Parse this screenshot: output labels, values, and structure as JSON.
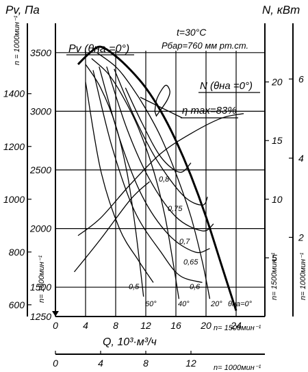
{
  "chart_data": {
    "type": "line",
    "title": "",
    "conditions": {
      "temperature": "t=30°C",
      "pressure": "Pбар=760 мм рт.ст."
    },
    "left_axes": {
      "pv_title": "Pv, Па",
      "outer_axis_title": "n = 1000мин⁻¹",
      "pv_1500_ticks": [
        "1250",
        "1500",
        "2000",
        "2500",
        "3000",
        "3500"
      ],
      "pv_1000_ticks": [
        "600",
        "800",
        "1000",
        "1200",
        "1400"
      ],
      "n_1500_label": "n= 1500мин⁻¹"
    },
    "right_axes": {
      "n_title": "N, кВт",
      "n_1500_ticks": [
        "5",
        "10",
        "15",
        "20"
      ],
      "n_1000_ticks": [
        "2",
        "4",
        "6"
      ],
      "n_1500_label": "n= 1500мин⁻¹",
      "n_1000_label": "n= 1000мин⁻¹"
    },
    "x_axis": {
      "title": "Q, 10³·м³/ч",
      "ticks_1500": [
        "0",
        "4",
        "8",
        "12",
        "16",
        "20",
        "24"
      ],
      "label_1500": "n= 1500мин⁻¹",
      "ticks_1000": [
        "0",
        "4",
        "8",
        "12"
      ],
      "label_1000": "n= 1000мин⁻¹"
    },
    "axis_ranges": {
      "q_1500": [
        0,
        24
      ],
      "pv_1500": [
        1250,
        3750
      ],
      "n_1500": [
        0,
        25
      ]
    },
    "grid": true,
    "series": [
      {
        "name": "Pv (θна =0°)",
        "kind": "pressure-angle",
        "angle": "0°",
        "points": [
          [
            3,
            3400
          ],
          [
            4.6,
            3500
          ],
          [
            6,
            3550
          ],
          [
            8,
            3470
          ],
          [
            10,
            3350
          ],
          [
            12,
            3200
          ],
          [
            14,
            3000
          ],
          [
            16,
            2750
          ],
          [
            18,
            2450
          ],
          [
            20,
            2100
          ],
          [
            22,
            1700
          ],
          [
            24,
            1300
          ]
        ]
      },
      {
        "kind": "pressure-angle",
        "angle": "20°",
        "points": [
          [
            5.5,
            3500
          ],
          [
            8,
            3380
          ],
          [
            10,
            3220
          ],
          [
            12,
            3020
          ],
          [
            14,
            2780
          ],
          [
            16,
            2470
          ],
          [
            18,
            2100
          ],
          [
            19.5,
            1720
          ],
          [
            20.5,
            1400
          ]
        ]
      },
      {
        "kind": "pressure-angle",
        "angle": "40°",
        "points": [
          [
            4.8,
            3450
          ],
          [
            7,
            3320
          ],
          [
            9,
            3120
          ],
          [
            11,
            2860
          ],
          [
            13,
            2500
          ],
          [
            14.5,
            2120
          ],
          [
            15.6,
            1720
          ],
          [
            16.4,
            1400
          ]
        ]
      },
      {
        "kind": "pressure-angle",
        "angle": "60°",
        "points": [
          [
            4,
            3400
          ],
          [
            6,
            3200
          ],
          [
            8,
            2880
          ],
          [
            9.5,
            2480
          ],
          [
            10.5,
            2060
          ],
          [
            11.2,
            1700
          ],
          [
            11.7,
            1420
          ]
        ]
      },
      {
        "name": "N (θна =0°)",
        "kind": "power",
        "points": [
          [
            3,
            6.9
          ],
          [
            6,
            8.4
          ],
          [
            10,
            11.3
          ],
          [
            14,
            13.9
          ],
          [
            18,
            15.6
          ],
          [
            22,
            16.9
          ],
          [
            25,
            17.3
          ]
        ]
      },
      {
        "kind": "power",
        "points": [
          [
            2.5,
            3.8
          ],
          [
            6,
            6.6
          ],
          [
            10,
            10.0
          ],
          [
            12.5,
            11.5
          ]
        ]
      },
      {
        "kind": "efficiency",
        "value": "0,5",
        "points": [
          [
            4,
            3250
          ],
          [
            6,
            2500
          ],
          [
            8.5,
            2000
          ],
          [
            11,
            1730
          ],
          [
            13,
            1540
          ]
        ]
      },
      {
        "kind": "efficiency",
        "value": "0,6",
        "points": [
          [
            5,
            3350
          ],
          [
            7.5,
            2700
          ],
          [
            10.5,
            2150
          ],
          [
            14,
            1800
          ],
          [
            16.5,
            1600
          ],
          [
            19.5,
            1540
          ]
        ]
      },
      {
        "kind": "efficiency",
        "value": "0,65",
        "points": [
          [
            5.8,
            3380
          ],
          [
            8.5,
            2770
          ],
          [
            11.5,
            2280
          ],
          [
            15,
            1950
          ],
          [
            18.5,
            1800
          ],
          [
            20.5,
            1830
          ]
        ]
      },
      {
        "kind": "efficiency",
        "value": "0,7",
        "points": [
          [
            6.8,
            3380
          ],
          [
            9.5,
            2850
          ],
          [
            12.5,
            2420
          ],
          [
            16,
            2100
          ],
          [
            19.5,
            1980
          ],
          [
            21,
            2040
          ]
        ]
      },
      {
        "kind": "efficiency",
        "value": "0,75",
        "points": [
          [
            7.8,
            3360
          ],
          [
            10.5,
            2950
          ],
          [
            13.5,
            2580
          ],
          [
            17,
            2280
          ],
          [
            19.5,
            2200
          ],
          [
            20.2,
            2270
          ]
        ]
      },
      {
        "kind": "efficiency",
        "value": "0,8",
        "points": [
          [
            9.3,
            3200
          ],
          [
            11.5,
            2900
          ],
          [
            14,
            2610
          ],
          [
            16.5,
            2480
          ],
          [
            18,
            2560
          ]
        ]
      },
      {
        "kind": "efficiency-peak",
        "value": "η max=83%",
        "points": [
          [
            13.4,
            2960
          ],
          [
            14.8,
            3090
          ],
          [
            15.2,
            3170
          ],
          [
            14.6,
            3220
          ],
          [
            13.5,
            3110
          ],
          [
            13.2,
            3000
          ]
        ]
      }
    ],
    "annotations": [
      "θна=0°",
      "20°",
      "40°",
      "60°",
      "0,8",
      "0,75",
      "0,7",
      "0,65",
      "0,6",
      "0,5",
      "η max=83%"
    ]
  }
}
